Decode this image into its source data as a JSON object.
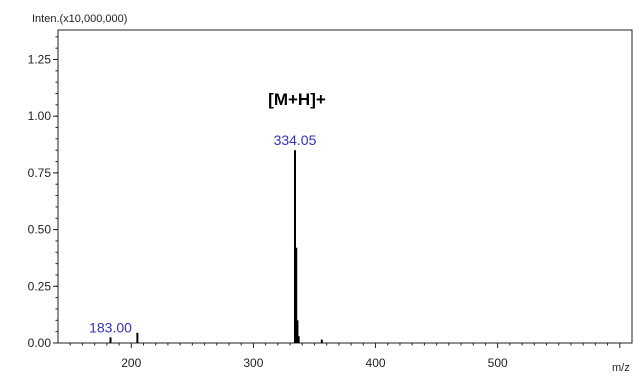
{
  "chart_data": {
    "type": "bar",
    "ylabel": "Inten.(x10,000,000)",
    "xlabel": "m/z",
    "xlim": [
      140,
      610
    ],
    "ylim": [
      0,
      1.38
    ],
    "x_ticks": [
      200,
      300,
      400,
      500
    ],
    "y_ticks": [
      0.0,
      0.25,
      0.5,
      0.75,
      1.0,
      1.25
    ],
    "y_tick_labels": [
      "0.00",
      "0.25",
      "0.50",
      "0.75",
      "1.00",
      "1.25"
    ],
    "grid": false,
    "peaks": [
      {
        "mz": 183.0,
        "intensity": 0.025
      },
      {
        "mz": 205.0,
        "intensity": 0.045
      },
      {
        "mz": 334.05,
        "intensity": 0.85
      },
      {
        "mz": 335.05,
        "intensity": 0.42
      },
      {
        "mz": 336.05,
        "intensity": 0.1
      },
      {
        "mz": 337.05,
        "intensity": 0.03
      },
      {
        "mz": 356.0,
        "intensity": 0.015
      }
    ],
    "peak_labels": [
      {
        "mz": 183.0,
        "intensity": 0.025,
        "text": "183.00"
      },
      {
        "mz": 334.05,
        "intensity": 0.85,
        "text": "334.05"
      }
    ],
    "annotations": [
      {
        "text": "[M+H]+",
        "mz": 334.05,
        "intensity": 1.05
      }
    ],
    "colors": {
      "bars": "#000000",
      "peak_label": "#3333bb",
      "axis": "#222222"
    }
  }
}
